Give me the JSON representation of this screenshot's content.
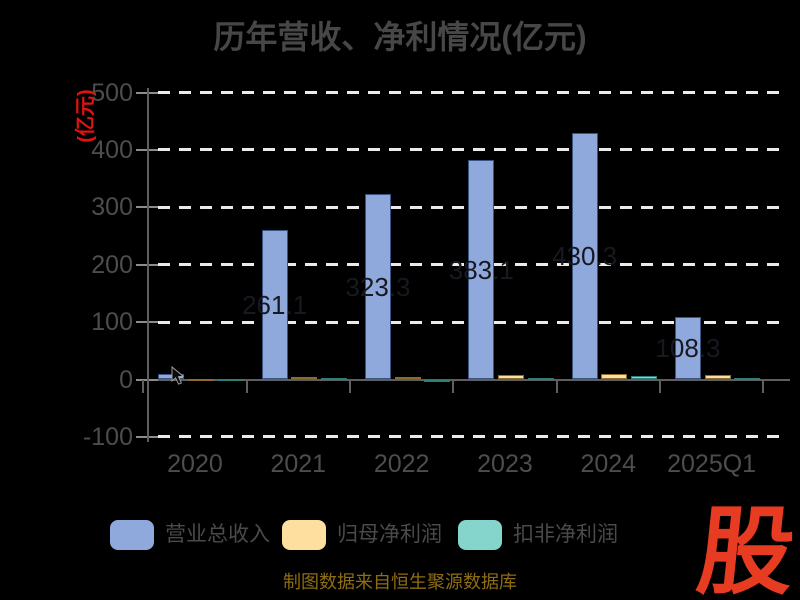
{
  "title": "历年营收、净利情况(亿元)",
  "source_note": "制图数据来自恒生聚源数据库",
  "watermark": "股",
  "colors": {
    "background": "#000000",
    "title_text": "#474747",
    "axis_text": "#4d4d4d",
    "axis_line": "#5f5f5f",
    "tick": "#8c8c8c",
    "gridline": "#ebebeb",
    "ylabel_red": "#e11212",
    "legend_text": "#4a4a4a",
    "source_text": "#8f6d12",
    "watermark_red": "#e73b22",
    "bar_label": "#181820"
  },
  "chart_data": {
    "type": "bar",
    "title": "历年营收、净利情况(亿元)",
    "ylabel": "(亿元)",
    "xlabel": "",
    "categories": [
      "2020",
      "2021",
      "2022",
      "2023",
      "2024",
      "2025Q1"
    ],
    "series": [
      {
        "name": "营业总收入",
        "color": "#8FA9DC",
        "border_color": "#3A5380",
        "values": [
          9,
          261.1,
          323.3,
          383.1,
          430.3,
          108.3
        ],
        "labels": [
          "",
          "261.1",
          "323.3",
          "383.1",
          "430.3",
          "108.3"
        ]
      },
      {
        "name": "归母净利润",
        "color": "#FFDFA0",
        "border_color": "#8C6D2F",
        "values": [
          1.5,
          4.5,
          5,
          7,
          9,
          7
        ],
        "labels": [
          "",
          "",
          "",
          "",
          "",
          ""
        ]
      },
      {
        "name": "扣非净利润",
        "color": "#86D5CD",
        "border_color": "#2F7E78",
        "values": [
          0.8,
          2,
          -4,
          3,
          5.5,
          2
        ],
        "labels": [
          "",
          "",
          "",
          "",
          "",
          ""
        ]
      }
    ],
    "ylim": [
      -100,
      500
    ],
    "yticks": [
      500,
      400,
      300,
      200,
      100,
      0,
      -100
    ],
    "grid": "horizontal-dashed-white",
    "legend_position": "bottom"
  }
}
